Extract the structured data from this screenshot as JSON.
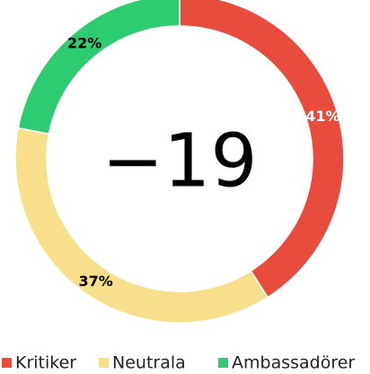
{
  "chart_data": {
    "type": "donut",
    "categories": [
      "Kritiker",
      "Neutrala",
      "Ambassadörer"
    ],
    "values": [
      41,
      37,
      22
    ],
    "value_labels": [
      "41%",
      "37%",
      "22%"
    ],
    "colors": [
      "#e74c3c",
      "#f7df8c",
      "#2ecc71"
    ],
    "center_label": "−19",
    "legend": "bottom"
  }
}
